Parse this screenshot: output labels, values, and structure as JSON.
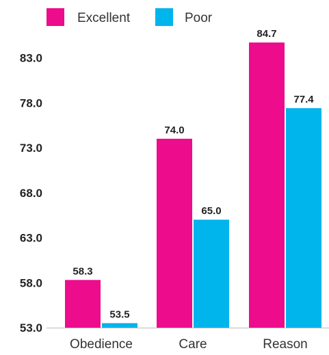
{
  "chart_data": {
    "type": "bar",
    "title": "",
    "xlabel": "",
    "ylabel": "",
    "categories": [
      "Obedience",
      "Care",
      "Reason"
    ],
    "series": [
      {
        "name": "Excellent",
        "color": "#ec0c8c",
        "values": [
          58.3,
          74.0,
          84.7
        ],
        "labels": [
          "58.3",
          "74.0",
          "84.7"
        ]
      },
      {
        "name": "Poor",
        "color": "#00b4ec",
        "values": [
          53.5,
          65.0,
          77.4
        ],
        "labels": [
          "53.5",
          "65.0",
          "77.4"
        ]
      }
    ],
    "yticks": [
      53.0,
      58.0,
      63.0,
      68.0,
      73.0,
      78.0,
      83.0
    ],
    "ytick_labels": [
      "53.0",
      "58.0",
      "63.0",
      "68.0",
      "73.0",
      "78.0",
      "83.0"
    ],
    "ylim": [
      53.0,
      86.6
    ],
    "grid": false,
    "legend": "top-left"
  }
}
